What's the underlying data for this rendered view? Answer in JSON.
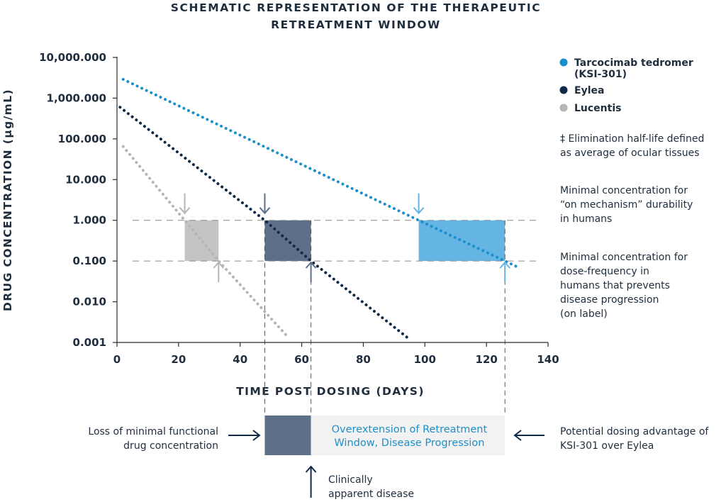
{
  "chart_data": {
    "type": "line",
    "title_lines": [
      "SCHEMATIC REPRESENTATION OF THE THERAPEUTIC",
      "RETREATMENT WINDOW"
    ],
    "xlabel": "TIME POST DOSING (DAYS)",
    "ylabel": "DRUG CONCENTRATION (µg/mL)",
    "y_scale": "log",
    "xlim": [
      0,
      140
    ],
    "ylim": [
      0.001,
      10000
    ],
    "x_ticks": [
      0,
      20,
      40,
      60,
      80,
      100,
      120,
      140
    ],
    "x_tick_labels": [
      "0",
      "20",
      "40",
      "60",
      "80",
      "100",
      "120",
      "140"
    ],
    "y_ticks": [
      0.001,
      0.01,
      0.1,
      1,
      10,
      100,
      1000,
      10000
    ],
    "y_tick_labels": [
      "0.001",
      "0.010",
      "0.100",
      "1.000",
      "10.000",
      "100.000",
      "1,000.000",
      "10,000.000"
    ],
    "grid": false,
    "legend_position": "right",
    "series": [
      {
        "name": "Tarcocimab tedromer",
        "name_line2": "(KSI-301)",
        "color": "#1b8fcc",
        "x": [
          2,
          98,
          126,
          131
        ],
        "y": [
          2900,
          1.0,
          0.1,
          0.066
        ]
      },
      {
        "name": "Eylea",
        "color": "#0f2a47",
        "x": [
          1,
          48,
          63,
          95
        ],
        "y": [
          600,
          1.0,
          0.1,
          0.0012
        ]
      },
      {
        "name": "Lucentis",
        "color": "#b5b5b5",
        "x": [
          2,
          22,
          33,
          55
        ],
        "y": [
          65,
          1.0,
          0.1,
          0.0015
        ]
      }
    ],
    "reference_lines": [
      {
        "y": 1.0,
        "style": "dashed",
        "color": "#8a8a8a"
      },
      {
        "y": 0.1,
        "style": "dashed",
        "color": "#8a8a8a"
      }
    ],
    "windows": [
      {
        "series": "Lucentis",
        "x_start": 22,
        "x_end": 33,
        "y_top": 1.0,
        "y_bottom": 0.1,
        "color": "#c4c4c4"
      },
      {
        "series": "Eylea",
        "x_start": 48,
        "x_end": 63,
        "y_top": 1.0,
        "y_bottom": 0.1,
        "color": "#5e7089"
      },
      {
        "series": "Tarcocimab tedromer",
        "x_start": 98,
        "x_end": 126,
        "y_top": 1.0,
        "y_bottom": 0.1,
        "color": "#64b5e3"
      }
    ],
    "window_arrows": [
      {
        "x": 22,
        "at": 1.0,
        "direction": "down",
        "color": "#b5b5b5"
      },
      {
        "x": 33,
        "at": 0.1,
        "direction": "up",
        "color": "#b5b5b5"
      },
      {
        "x": 48,
        "at": 1.0,
        "direction": "down",
        "color": "#5e7089"
      },
      {
        "x": 63,
        "at": 0.1,
        "direction": "up",
        "color": "#5e7089"
      },
      {
        "x": 98,
        "at": 1.0,
        "direction": "down",
        "color": "#64b5e3"
      },
      {
        "x": 126,
        "at": 0.1,
        "direction": "up",
        "color": "#64b5e3"
      }
    ],
    "drop_lines_x": [
      48,
      63,
      126
    ],
    "annotations": {
      "note_halflife": [
        "‡ Elimination half-life defined",
        "as average of ocular tissues"
      ],
      "note_upper": [
        "Minimal concentration for",
        "“on mechanism” durability",
        "in humans"
      ],
      "note_lower": [
        "Minimal concentration for",
        "dose-frequency in",
        "humans that prevents",
        "disease progression",
        "(on label)"
      ]
    },
    "bottom_panel": {
      "dark_box": {
        "x_start": 48,
        "x_end": 63,
        "color": "#5e7089"
      },
      "light_box": {
        "x_start": 63,
        "x_end": 126,
        "color": "#f2f2f2"
      },
      "light_box_text": [
        "Overextension of Retreatment",
        "Window, Disease Progression"
      ],
      "left_text": [
        "Loss of minimal functional",
        "drug concentration"
      ],
      "right_text": [
        "Potential dosing advantage of",
        "KSI-301 over Eylea"
      ],
      "below_text": [
        "Clinically",
        "apparent disease"
      ],
      "arrow_color": "#0f2a47"
    }
  }
}
